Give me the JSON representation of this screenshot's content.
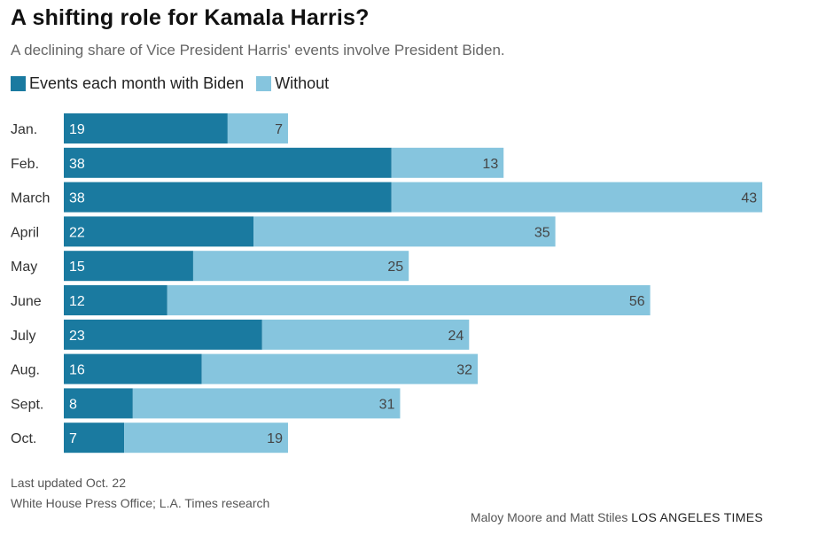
{
  "title": "A shifting role for Kamala Harris?",
  "subtitle": "A declining share of Vice President Harris' events involve President Biden.",
  "colors": {
    "with": "#1a7aa0",
    "without": "#86c5de"
  },
  "chart_data": {
    "type": "bar",
    "orientation": "horizontal",
    "stacked": true,
    "categories": [
      "Jan.",
      "Feb.",
      "March",
      "April",
      "May",
      "June",
      "July",
      "Aug.",
      "Sept.",
      "Oct."
    ],
    "series": [
      {
        "name": "Events each month with Biden",
        "values": [
          19,
          38,
          38,
          22,
          15,
          12,
          23,
          16,
          8,
          7
        ]
      },
      {
        "name": "Without",
        "values": [
          7,
          13,
          43,
          35,
          25,
          56,
          24,
          32,
          31,
          19
        ]
      }
    ],
    "xlim": [
      0,
      81
    ],
    "legend": "top-left",
    "grid": false
  },
  "footer": {
    "updated": "Last updated Oct. 22",
    "source": "White House Press Office; L.A. Times research"
  },
  "credit": {
    "authors": "Maloy Moore and Matt Stiles",
    "org": "LOS ANGELES TIMES"
  }
}
